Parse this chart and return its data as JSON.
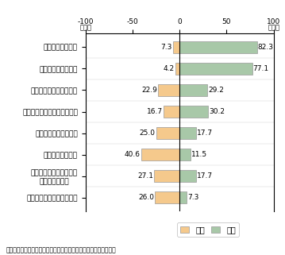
{
  "categories": [
    "開発コストの削減",
    "国内人材不足の補完",
    "海外の高い技術力の活用",
    "ソフトウェア関連売上の拡大",
    "開発のスピードアップ",
    "相手国市場の開拓",
    "コア・コンピタンスへの\n経営資源の集中",
    "製品・サービスの品質向上"
  ],
  "nashi_values": [
    7.3,
    4.2,
    22.9,
    16.7,
    25.0,
    40.6,
    27.1,
    26.0
  ],
  "ari_values": [
    82.3,
    77.1,
    29.2,
    30.2,
    17.7,
    11.5,
    17.7,
    7.3
  ],
  "nashi_color": "#F5C98C",
  "ari_color": "#A8C8A8",
  "xlim": [
    -100,
    100
  ],
  "xticks": [
    -100,
    -50,
    0,
    50,
    100
  ],
  "xticklabels": [
    "-100",
    "-50",
    "0",
    "50",
    "100"
  ],
  "top_left_label": "(%)-100",
  "top_right_label": "100(%)",
  "footer": "（出典）「オフショアリングの進展とその影響に関する調査研究」",
  "legend_nashi": "なし",
  "legend_ari": "あり",
  "bar_height": 0.55,
  "background_color": "#ffffff"
}
